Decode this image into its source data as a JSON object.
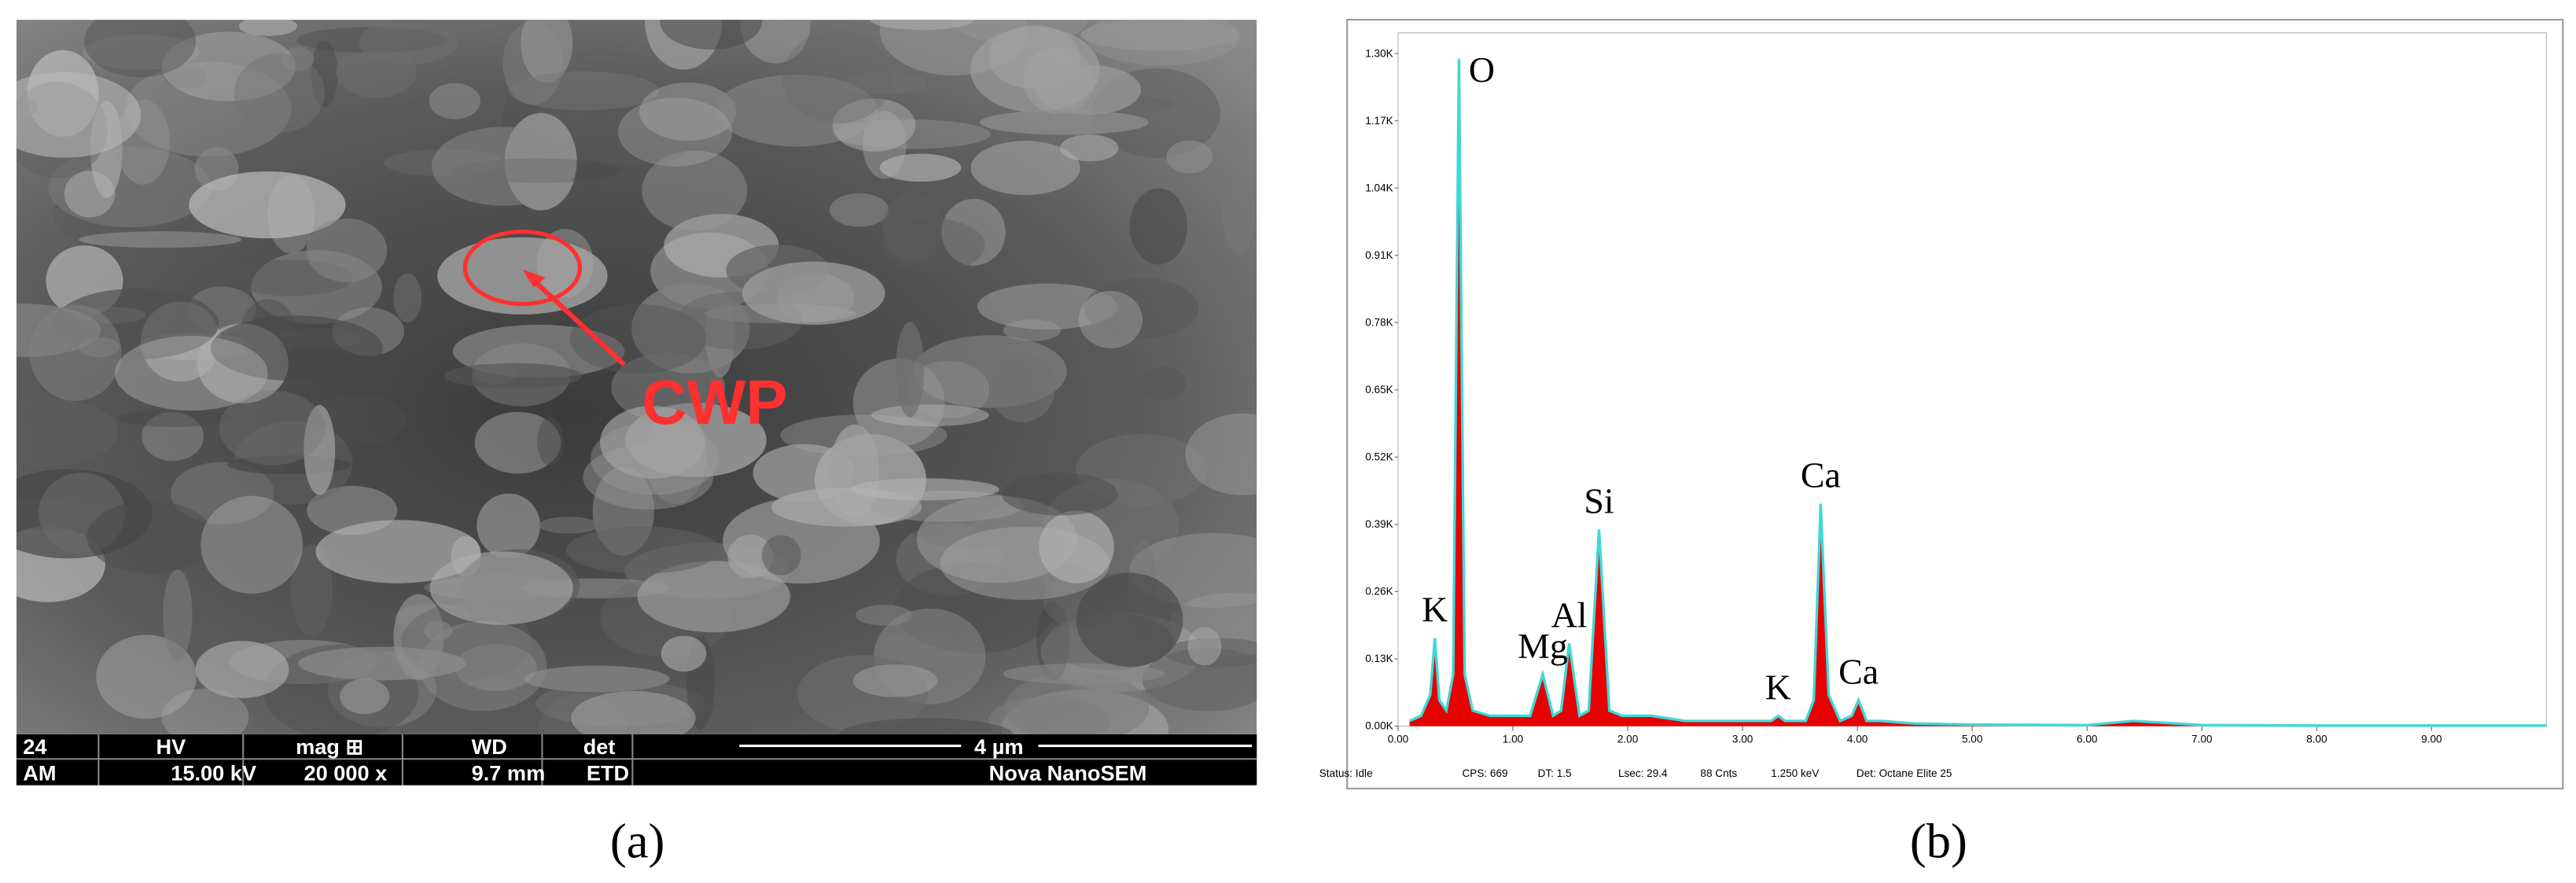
{
  "panel_a": {
    "label": "(a)",
    "annotation": "CWP",
    "info_bar": {
      "header": [
        "24",
        "HV",
        "mag ⊞",
        "WD",
        "det"
      ],
      "values": [
        "AM",
        "15.00 kV",
        "20 000 x",
        "9.7 mm",
        "ETD"
      ],
      "scale_bar": "4 µm",
      "instrument": "Nova NanoSEM"
    }
  },
  "panel_b": {
    "label": "(b)",
    "status": [
      "Status: Idle",
      "CPS: 669",
      "DT: 1.5",
      "Lsec: 29.4",
      "88 Cnts",
      "1.250 keV",
      "Det: Octane Elite 25"
    ]
  },
  "chart_data": {
    "type": "area",
    "x": [
      0.1,
      0.2,
      0.28,
      0.32,
      0.36,
      0.42,
      0.48,
      0.53,
      0.58,
      0.65,
      0.8,
      1.0,
      1.15,
      1.26,
      1.35,
      1.42,
      1.49,
      1.58,
      1.66,
      1.75,
      1.84,
      1.95,
      2.2,
      2.5,
      3.0,
      3.25,
      3.31,
      3.37,
      3.55,
      3.62,
      3.68,
      3.75,
      3.85,
      3.95,
      4.01,
      4.08,
      4.2,
      4.5,
      5,
      6,
      6.4,
      7,
      8,
      9,
      10
    ],
    "series": [
      {
        "color": "#e60000",
        "line_color": "#3fd8d8",
        "values": [
          0.01,
          0.02,
          0.06,
          0.17,
          0.05,
          0.03,
          0.1,
          1.29,
          0.1,
          0.03,
          0.02,
          0.02,
          0.02,
          0.1,
          0.02,
          0.03,
          0.16,
          0.02,
          0.03,
          0.38,
          0.03,
          0.02,
          0.02,
          0.01,
          0.01,
          0.01,
          0.02,
          0.01,
          0.01,
          0.05,
          0.43,
          0.06,
          0.01,
          0.02,
          0.05,
          0.01,
          0.01,
          0.005,
          0.003,
          0.002,
          0.01,
          0.002,
          0.001,
          0.001,
          0.001
        ]
      }
    ],
    "peak_labels": [
      {
        "text": "O",
        "x": 0.53,
        "y": 1.29
      },
      {
        "text": "K",
        "x": 0.32,
        "y": 0.17
      },
      {
        "text": "Mg",
        "x": 1.26,
        "y": 0.1
      },
      {
        "text": "Al",
        "x": 1.49,
        "y": 0.16
      },
      {
        "text": "Si",
        "x": 1.75,
        "y": 0.38
      },
      {
        "text": "K",
        "x": 3.31,
        "y": 0.02
      },
      {
        "text": "Ca",
        "x": 3.68,
        "y": 0.43
      },
      {
        "text": "Ca",
        "x": 4.01,
        "y": 0.05
      }
    ],
    "xlim": [
      0,
      10
    ],
    "ylim": [
      0,
      1.34
    ],
    "xticks": [
      {
        "value": 0,
        "label": "0.00"
      },
      {
        "value": 1,
        "label": "1.00"
      },
      {
        "value": 2,
        "label": "2.00"
      },
      {
        "value": 3,
        "label": "3.00"
      },
      {
        "value": 4,
        "label": "4.00"
      },
      {
        "value": 5,
        "label": "5.00"
      },
      {
        "value": 6,
        "label": "6.00"
      },
      {
        "value": 7,
        "label": "7.00"
      },
      {
        "value": 8,
        "label": "8.00"
      },
      {
        "value": 9,
        "label": "9.00"
      }
    ],
    "yticks": [
      {
        "value": 0,
        "label": "0.00K"
      },
      {
        "value": 0.13,
        "label": "0.13K"
      },
      {
        "value": 0.26,
        "label": "0.26K"
      },
      {
        "value": 0.39,
        "label": "0.39K"
      },
      {
        "value": 0.52,
        "label": "0.52K"
      },
      {
        "value": 0.65,
        "label": "0.65K"
      },
      {
        "value": 0.78,
        "label": "0.78K"
      },
      {
        "value": 0.91,
        "label": "0.91K"
      },
      {
        "value": 1.04,
        "label": "1.04K"
      },
      {
        "value": 1.17,
        "label": "1.17K"
      },
      {
        "value": 1.3,
        "label": "1.30K"
      }
    ]
  }
}
